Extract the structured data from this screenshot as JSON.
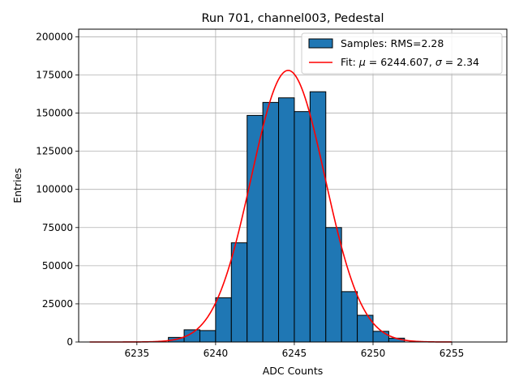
{
  "chart_data": {
    "type": "bar",
    "title": "Run 701, channel003, Pedestal",
    "xlabel": "ADC Counts",
    "ylabel": "Entries",
    "xlim": [
      6231.3,
      6258.5
    ],
    "ylim": [
      0,
      205000
    ],
    "grid": true,
    "legend_position": "top-right",
    "x_ticks": [
      6235,
      6240,
      6245,
      6250,
      6255
    ],
    "y_ticks": [
      0,
      25000,
      50000,
      75000,
      100000,
      125000,
      150000,
      175000,
      200000
    ],
    "bin_width": 1.0,
    "bins": [
      {
        "x0": 6237,
        "value": 3000
      },
      {
        "x0": 6238,
        "value": 8000
      },
      {
        "x0": 6239,
        "value": 7500
      },
      {
        "x0": 6240,
        "value": 29000
      },
      {
        "x0": 6241,
        "value": 65000
      },
      {
        "x0": 6242,
        "value": 148500
      },
      {
        "x0": 6243,
        "value": 157000
      },
      {
        "x0": 6244,
        "value": 160000
      },
      {
        "x0": 6245,
        "value": 151000
      },
      {
        "x0": 6246,
        "value": 164000
      },
      {
        "x0": 6247,
        "value": 75000
      },
      {
        "x0": 6248,
        "value": 33000
      },
      {
        "x0": 6249,
        "value": 17500
      },
      {
        "x0": 6250,
        "value": 7000
      },
      {
        "x0": 6251,
        "value": 2500
      }
    ],
    "fit": {
      "mu": 6244.607,
      "sigma": 2.34,
      "amplitude": 178000,
      "x_range": [
        6232,
        6255
      ]
    },
    "legend": {
      "samples_label": "Samples: RMS=2.28",
      "fit_label_prefix": "Fit: ",
      "fit_mu_symbol": "μ",
      "fit_mu_text": " = 6244.607, ",
      "fit_sigma_symbol": "σ",
      "fit_sigma_text": " = 2.34"
    },
    "colors": {
      "bar_fill": "#1f77b4",
      "bar_edge": "#000000",
      "fit_line": "#ff0000",
      "grid": "#b0b0b0"
    }
  }
}
